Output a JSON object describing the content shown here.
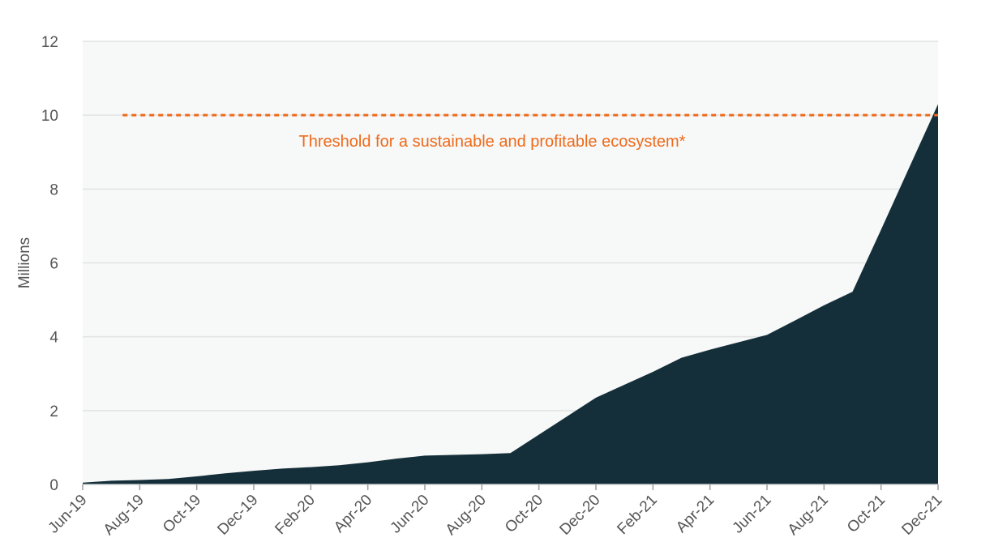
{
  "chart_data": {
    "type": "area",
    "title": "",
    "xlabel": "",
    "ylabel": "Millions",
    "ylim": [
      0,
      12
    ],
    "yticks": [
      "0",
      "2",
      "4",
      "6",
      "8",
      "10",
      "12"
    ],
    "x": [
      "Jun-19",
      "Jul-19",
      "Aug-19",
      "Sep-19",
      "Oct-19",
      "Nov-19",
      "Dec-19",
      "Jan-20",
      "Feb-20",
      "Mar-20",
      "Apr-20",
      "May-20",
      "Jun-20",
      "Jul-20",
      "Aug-20",
      "Sep-20",
      "Oct-20",
      "Nov-20",
      "Dec-20",
      "Jan-21",
      "Feb-21",
      "Mar-21",
      "Apr-21",
      "May-21",
      "Jun-21",
      "Jul-21",
      "Aug-21",
      "Sep-21",
      "Oct-21",
      "Nov-21",
      "Dec-21"
    ],
    "xticks": [
      "Jun-19",
      "Aug-19",
      "Oct-19",
      "Dec-19",
      "Feb-20",
      "Apr-20",
      "Jun-20",
      "Aug-20",
      "Oct-20",
      "Dec-20",
      "Feb-21",
      "Apr-21",
      "Jun-21",
      "Aug-21",
      "Oct-21",
      "Dec-21"
    ],
    "series": [
      {
        "values": [
          0.05,
          0.1,
          0.12,
          0.15,
          0.22,
          0.3,
          0.37,
          0.43,
          0.47,
          0.52,
          0.6,
          0.7,
          0.78,
          0.8,
          0.82,
          0.85,
          1.35,
          1.85,
          2.35,
          2.7,
          3.05,
          3.43,
          3.65,
          3.85,
          4.05,
          4.45,
          4.85,
          5.22,
          6.9,
          8.6,
          10.3
        ],
        "color": "#142f39"
      }
    ],
    "threshold": {
      "value": 10,
      "label": "Threshold for a sustainable and profitable ecosystem*",
      "color": "#ee6a1a",
      "style": "dashed"
    },
    "grid": true,
    "plot_background": "#f7f8f8",
    "gridline_color": "#e1e3e4"
  }
}
